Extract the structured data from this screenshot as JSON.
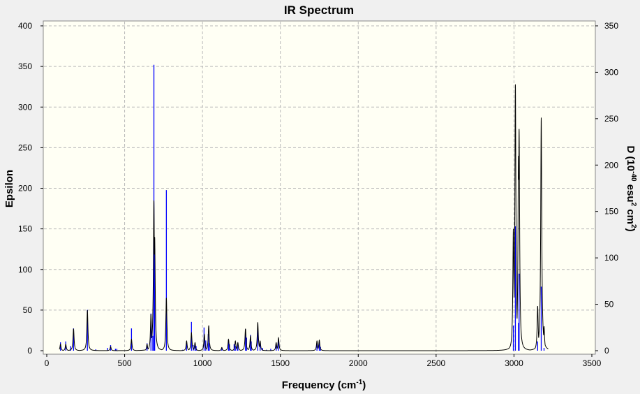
{
  "chart_data": {
    "type": "line",
    "title": "IR Spectrum",
    "xlabel_parts": [
      "Frequency (cm",
      "-1",
      ")"
    ],
    "ylabel": "Epsilon",
    "y2label_parts": [
      "D (10",
      "-40",
      " esu",
      "2",
      " cm",
      "2",
      ")"
    ],
    "xlim": [
      0,
      3500
    ],
    "ylim": [
      0,
      400
    ],
    "y2lim": [
      0,
      350
    ],
    "xticks": [
      0,
      500,
      1000,
      1500,
      2000,
      2500,
      3000,
      3500
    ],
    "yticks": [
      0,
      50,
      100,
      150,
      200,
      250,
      300,
      350,
      400
    ],
    "y2ticks": [
      0,
      50,
      100,
      150,
      200,
      250,
      300,
      350
    ],
    "grid": true,
    "colors": {
      "curve": "#000000",
      "sticks": "#0000ff",
      "plot_bg": "#fffff4"
    },
    "series": [
      {
        "kind": "spectrum-curve",
        "axis": "left",
        "peaks": [
          [
            88,
            8
          ],
          [
            122,
            8
          ],
          [
            172,
            27
          ],
          [
            261,
            50
          ],
          [
            410,
            5
          ],
          [
            544,
            14
          ],
          [
            644,
            8
          ],
          [
            669,
            45
          ],
          [
            688,
            185
          ],
          [
            693,
            140
          ],
          [
            768,
            65
          ],
          [
            898,
            12
          ],
          [
            929,
            22
          ],
          [
            952,
            10
          ],
          [
            1012,
            20
          ],
          [
            1040,
            31
          ],
          [
            1124,
            4
          ],
          [
            1167,
            14
          ],
          [
            1211,
            12
          ],
          [
            1227,
            10
          ],
          [
            1276,
            27
          ],
          [
            1308,
            18
          ],
          [
            1355,
            35
          ],
          [
            1370,
            12
          ],
          [
            1473,
            10
          ],
          [
            1488,
            16
          ],
          [
            1735,
            12
          ],
          [
            1750,
            13
          ],
          [
            2996,
            150
          ],
          [
            3009,
            328
          ],
          [
            3029,
            240
          ],
          [
            3033,
            273
          ],
          [
            3152,
            55
          ],
          [
            3175,
            287
          ],
          [
            3193,
            30
          ]
        ]
      },
      {
        "kind": "sticks",
        "axis": "right",
        "points": [
          [
            88,
            9
          ],
          [
            122,
            10
          ],
          [
            154,
            5
          ],
          [
            172,
            24
          ],
          [
            261,
            44
          ],
          [
            315,
            1.5
          ],
          [
            390,
            3
          ],
          [
            410,
            6
          ],
          [
            441,
            2
          ],
          [
            450,
            2
          ],
          [
            544,
            24
          ],
          [
            644,
            8
          ],
          [
            669,
            40
          ],
          [
            681,
            16
          ],
          [
            688,
            308
          ],
          [
            693,
            110
          ],
          [
            768,
            173
          ],
          [
            873,
            1
          ],
          [
            898,
            10
          ],
          [
            929,
            31
          ],
          [
            940,
            6
          ],
          [
            952,
            7
          ],
          [
            959,
            5
          ],
          [
            1010,
            25
          ],
          [
            1021,
            11
          ],
          [
            1037,
            18
          ],
          [
            1044,
            8
          ],
          [
            1124,
            3
          ],
          [
            1167,
            12
          ],
          [
            1173,
            7
          ],
          [
            1203,
            7
          ],
          [
            1211,
            5
          ],
          [
            1224,
            1.5
          ],
          [
            1227,
            7.5
          ],
          [
            1276,
            23
          ],
          [
            1283,
            14
          ],
          [
            1308,
            17
          ],
          [
            1313,
            10
          ],
          [
            1355,
            23
          ],
          [
            1370,
            8
          ],
          [
            1386,
            3
          ],
          [
            1410,
            1
          ],
          [
            1438,
            2
          ],
          [
            1473,
            7
          ],
          [
            1488,
            10
          ],
          [
            1735,
            8
          ],
          [
            1750,
            9
          ],
          [
            1758,
            4
          ],
          [
            2996,
            27
          ],
          [
            3009,
            134
          ],
          [
            3029,
            30
          ],
          [
            3033,
            83
          ],
          [
            3152,
            10
          ],
          [
            3175,
            69
          ],
          [
            3193,
            3
          ]
        ]
      }
    ]
  }
}
